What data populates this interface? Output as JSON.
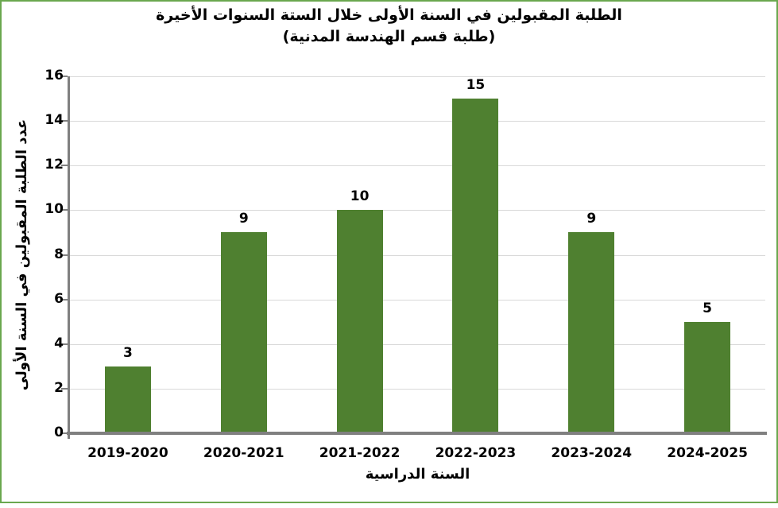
{
  "title": {
    "line1": "الطلبة المقبولين في السنة الأولى خلال الستة السنوات الأخيرة",
    "line2": "(طلبة قسم الهندسة المدنية)"
  },
  "chart_data": {
    "type": "bar",
    "categories": [
      "2019-2020",
      "2020-2021",
      "2021-2022",
      "2022-2023",
      "2023-2024",
      "2024-2025"
    ],
    "values": [
      3,
      9,
      10,
      15,
      9,
      5
    ],
    "title": "الطلبة المقبولين في السنة الأولى خلال الستة السنوات الأخيرة (طلبة قسم الهندسة المدنية)",
    "xlabel": "السنة الدراسية",
    "ylabel": "عدد الطلبة المقبولين في السنة الأولى",
    "ylim": [
      0,
      16
    ],
    "ytick_step": 2,
    "yticks": [
      0,
      2,
      4,
      6,
      8,
      10,
      12,
      14,
      16
    ],
    "grid": true,
    "legend": "none",
    "data_labels": true,
    "colors": {
      "bar": "#4f8030",
      "frame_border": "#6aa84f",
      "axis": "#808080",
      "gridline": "#d9d9d9",
      "text": "#000000",
      "background": "#ffffff"
    }
  }
}
